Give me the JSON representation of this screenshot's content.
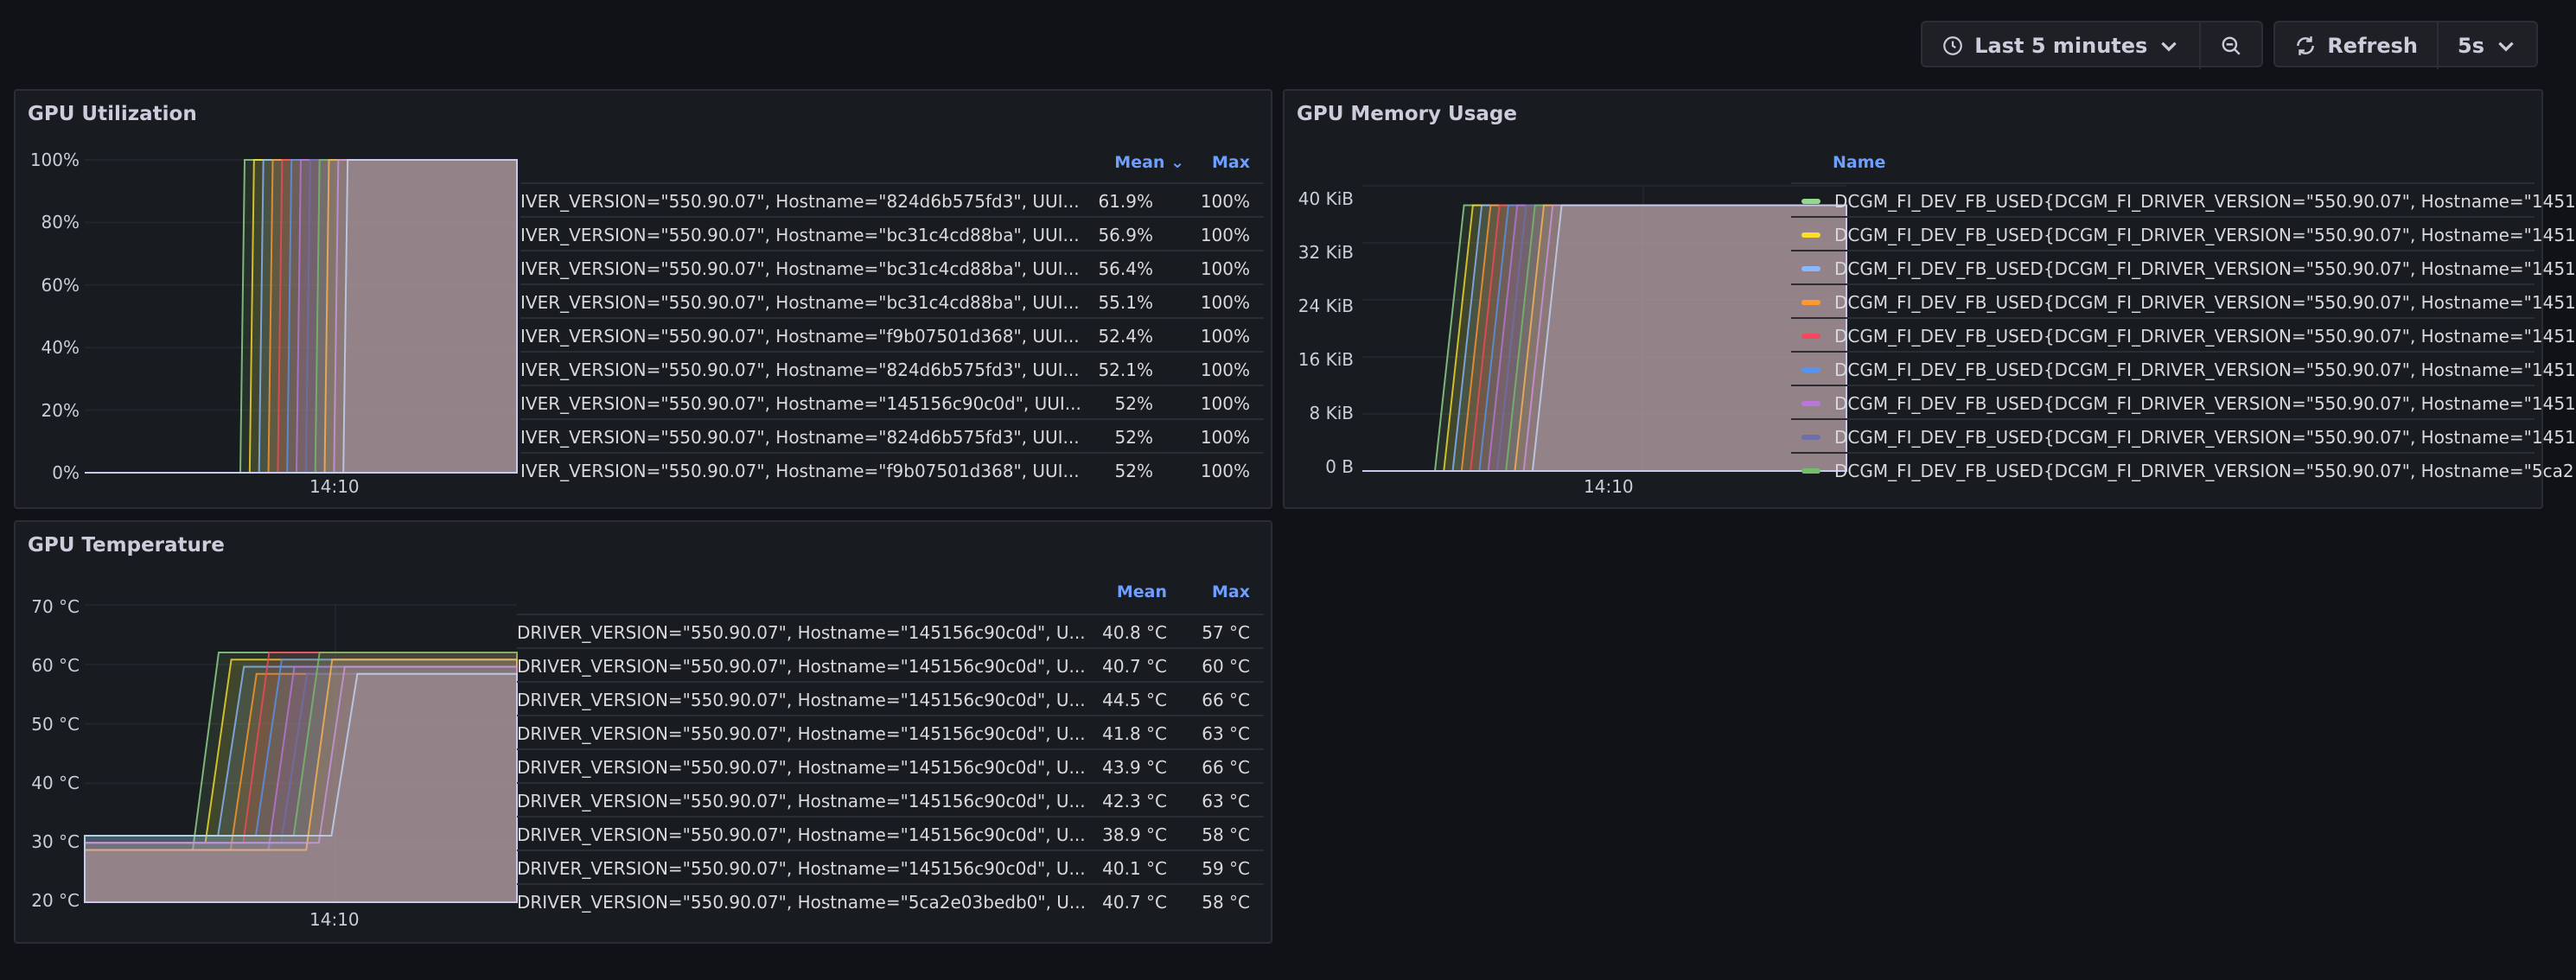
{
  "toolbar": {
    "time_range_label": "Last 5 minutes",
    "refresh_label": "Refresh",
    "refresh_interval": "5s"
  },
  "panels": {
    "utilization": {
      "title": "GPU Utilization",
      "y_ticks": [
        "100%",
        "80%",
        "60%",
        "40%",
        "20%",
        "0%"
      ],
      "x_tick": "14:10",
      "legend_headers": {
        "mean": "Mean",
        "max": "Max"
      },
      "rows": [
        {
          "name": "IVER_VERSION=\"550.90.07\", Hostname=\"824d6b575fd3\", UUI...",
          "mean": "61.9%",
          "max": "100%"
        },
        {
          "name": "IVER_VERSION=\"550.90.07\", Hostname=\"bc31c4cd88ba\", UUI...",
          "mean": "56.9%",
          "max": "100%"
        },
        {
          "name": "IVER_VERSION=\"550.90.07\", Hostname=\"bc31c4cd88ba\", UUI...",
          "mean": "56.4%",
          "max": "100%"
        },
        {
          "name": "IVER_VERSION=\"550.90.07\", Hostname=\"bc31c4cd88ba\", UUI...",
          "mean": "55.1%",
          "max": "100%"
        },
        {
          "name": "IVER_VERSION=\"550.90.07\", Hostname=\"f9b07501d368\", UUI...",
          "mean": "52.4%",
          "max": "100%"
        },
        {
          "name": "IVER_VERSION=\"550.90.07\", Hostname=\"824d6b575fd3\", UUI...",
          "mean": "52.1%",
          "max": "100%"
        },
        {
          "name": "IVER_VERSION=\"550.90.07\", Hostname=\"145156c90c0d\", UUI...",
          "mean": "52%",
          "max": "100%"
        },
        {
          "name": "IVER_VERSION=\"550.90.07\", Hostname=\"824d6b575fd3\", UUI...",
          "mean": "52%",
          "max": "100%"
        },
        {
          "name": "IVER_VERSION=\"550.90.07\", Hostname=\"f9b07501d368\", UUI...",
          "mean": "52%",
          "max": "100%"
        }
      ]
    },
    "memory": {
      "title": "GPU Memory Usage",
      "y_ticks": [
        "40 KiB",
        "32 KiB",
        "24 KiB",
        "16 KiB",
        "8 KiB",
        "0 B"
      ],
      "x_tick": "14:10",
      "legend_headers": {
        "name": "Name"
      },
      "rows": [
        {
          "name": "DCGM_FI_DEV_FB_USED{DCGM_FI_DRIVER_VERSION=\"550.90.07\", Hostname=\"1451",
          "color": "#96d98d"
        },
        {
          "name": "DCGM_FI_DEV_FB_USED{DCGM_FI_DRIVER_VERSION=\"550.90.07\", Hostname=\"1451",
          "color": "#fade2a"
        },
        {
          "name": "DCGM_FI_DEV_FB_USED{DCGM_FI_DRIVER_VERSION=\"550.90.07\", Hostname=\"1451",
          "color": "#8ab8ff"
        },
        {
          "name": "DCGM_FI_DEV_FB_USED{DCGM_FI_DRIVER_VERSION=\"550.90.07\", Hostname=\"1451",
          "color": "#ff9830"
        },
        {
          "name": "DCGM_FI_DEV_FB_USED{DCGM_FI_DRIVER_VERSION=\"550.90.07\", Hostname=\"1451",
          "color": "#f2495c"
        },
        {
          "name": "DCGM_FI_DEV_FB_USED{DCGM_FI_DRIVER_VERSION=\"550.90.07\", Hostname=\"1451",
          "color": "#5794f2"
        },
        {
          "name": "DCGM_FI_DEV_FB_USED{DCGM_FI_DRIVER_VERSION=\"550.90.07\", Hostname=\"1451",
          "color": "#b877d9"
        },
        {
          "name": "DCGM_FI_DEV_FB_USED{DCGM_FI_DRIVER_VERSION=\"550.90.07\", Hostname=\"1451",
          "color": "#6e6ea8"
        },
        {
          "name": "DCGM_FI_DEV_FB_USED{DCGM_FI_DRIVER_VERSION=\"550.90.07\", Hostname=\"5ca2",
          "color": "#73bf69"
        }
      ]
    },
    "temperature": {
      "title": "GPU Temperature",
      "y_ticks": [
        "70 °C",
        "60 °C",
        "50 °C",
        "40 °C",
        "30 °C",
        "20 °C"
      ],
      "x_tick": "14:10",
      "legend_headers": {
        "mean": "Mean",
        "max": "Max"
      },
      "rows": [
        {
          "name": "DRIVER_VERSION=\"550.90.07\", Hostname=\"145156c90c0d\", U...",
          "mean": "40.8 °C",
          "max": "57 °C"
        },
        {
          "name": "DRIVER_VERSION=\"550.90.07\", Hostname=\"145156c90c0d\", U...",
          "mean": "40.7 °C",
          "max": "60 °C"
        },
        {
          "name": "DRIVER_VERSION=\"550.90.07\", Hostname=\"145156c90c0d\", U...",
          "mean": "44.5 °C",
          "max": "66 °C"
        },
        {
          "name": "DRIVER_VERSION=\"550.90.07\", Hostname=\"145156c90c0d\", U...",
          "mean": "41.8 °C",
          "max": "63 °C"
        },
        {
          "name": "DRIVER_VERSION=\"550.90.07\", Hostname=\"145156c90c0d\", U...",
          "mean": "43.9 °C",
          "max": "66 °C"
        },
        {
          "name": "DRIVER_VERSION=\"550.90.07\", Hostname=\"145156c90c0d\", U...",
          "mean": "42.3 °C",
          "max": "63 °C"
        },
        {
          "name": "DRIVER_VERSION=\"550.90.07\", Hostname=\"145156c90c0d\", U...",
          "mean": "38.9 °C",
          "max": "58 °C"
        },
        {
          "name": "DRIVER_VERSION=\"550.90.07\", Hostname=\"145156c90c0d\", U...",
          "mean": "40.1 °C",
          "max": "59 °C"
        },
        {
          "name": "DRIVER_VERSION=\"550.90.07\", Hostname=\"5ca2e03bedb0\", U...",
          "mean": "40.7 °C",
          "max": "58 °C"
        }
      ]
    }
  },
  "chart_data": [
    {
      "type": "area",
      "title": "GPU Utilization",
      "y_unit": "%",
      "ylim": [
        0,
        100
      ],
      "x_tick_labels": [
        "14:10"
      ],
      "grid": true,
      "legend_placement": "right",
      "series_shape": {
        "baseline": 0,
        "ramp_to": 100
      }
    },
    {
      "type": "area",
      "title": "GPU Memory Usage",
      "y_unit": "KiB",
      "ylim": [
        0,
        44
      ],
      "x_tick_labels": [
        "14:10"
      ],
      "grid": true,
      "legend_placement": "right",
      "series_shape": {
        "baseline": 0,
        "ramp_to": 41
      }
    },
    {
      "type": "area",
      "title": "GPU Temperature",
      "y_unit": "°C",
      "ylim": [
        20,
        70
      ],
      "x_tick_labels": [
        "14:10"
      ],
      "grid": true,
      "legend_placement": "right",
      "series_shape": {
        "baseline": 30,
        "ramp_to": 62
      }
    }
  ]
}
